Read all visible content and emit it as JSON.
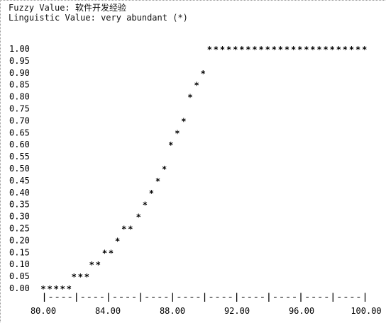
{
  "header": {
    "fuzzy_label": "Fuzzy Value:",
    "fuzzy_value": "软件开发经验",
    "linguistic_label": "Linguistic Value:",
    "linguistic_value": "very abundant",
    "linguistic_symbol": "(*)"
  },
  "chart_data": {
    "type": "scatter",
    "title": "",
    "xlabel": "",
    "ylabel": "",
    "xlim": [
      80,
      100
    ],
    "ylim": [
      0,
      1
    ],
    "grid": false,
    "legend": "none",
    "marker": "*",
    "y_tick_labels": [
      "1.00",
      "0.95",
      "0.90",
      "0.85",
      "0.80",
      "0.75",
      "0.70",
      "0.65",
      "0.60",
      "0.55",
      "0.50",
      "0.45",
      "0.40",
      "0.35",
      "0.30",
      "0.25",
      "0.20",
      "0.15",
      "0.10",
      "0.05",
      "0.00"
    ],
    "x_tick_labels": [
      "80.00",
      "84.00",
      "88.00",
      "92.00",
      "96.00",
      "100.00"
    ],
    "x_tick_values": [
      80,
      84,
      88,
      92,
      96,
      100
    ],
    "axis_line": "|----|----|----|----|----|----|----|----|----|----|",
    "series": [
      {
        "points": [
          {
            "x": 80.0,
            "y": 0.0
          },
          {
            "x": 80.4,
            "y": 0.0
          },
          {
            "x": 80.8,
            "y": 0.0
          },
          {
            "x": 81.2,
            "y": 0.0
          },
          {
            "x": 81.6,
            "y": 0.0
          },
          {
            "x": 81.9,
            "y": 0.05
          },
          {
            "x": 82.3,
            "y": 0.05
          },
          {
            "x": 82.7,
            "y": 0.05
          },
          {
            "x": 83.0,
            "y": 0.1
          },
          {
            "x": 83.4,
            "y": 0.1
          },
          {
            "x": 83.8,
            "y": 0.15
          },
          {
            "x": 84.2,
            "y": 0.15
          },
          {
            "x": 84.6,
            "y": 0.2
          },
          {
            "x": 85.0,
            "y": 0.25
          },
          {
            "x": 85.4,
            "y": 0.25
          },
          {
            "x": 85.9,
            "y": 0.3
          },
          {
            "x": 86.3,
            "y": 0.35
          },
          {
            "x": 86.7,
            "y": 0.4
          },
          {
            "x": 87.1,
            "y": 0.45
          },
          {
            "x": 87.5,
            "y": 0.5
          },
          {
            "x": 87.9,
            "y": 0.6
          },
          {
            "x": 88.3,
            "y": 0.65
          },
          {
            "x": 88.7,
            "y": 0.7
          },
          {
            "x": 89.1,
            "y": 0.8
          },
          {
            "x": 89.5,
            "y": 0.85
          },
          {
            "x": 89.9,
            "y": 0.9
          },
          {
            "x": 90.3,
            "y": 1.0
          },
          {
            "x": 90.7,
            "y": 1.0
          },
          {
            "x": 91.1,
            "y": 1.0
          },
          {
            "x": 91.5,
            "y": 1.0
          },
          {
            "x": 91.9,
            "y": 1.0
          },
          {
            "x": 92.3,
            "y": 1.0
          },
          {
            "x": 92.7,
            "y": 1.0
          },
          {
            "x": 93.1,
            "y": 1.0
          },
          {
            "x": 93.5,
            "y": 1.0
          },
          {
            "x": 93.9,
            "y": 1.0
          },
          {
            "x": 94.3,
            "y": 1.0
          },
          {
            "x": 94.7,
            "y": 1.0
          },
          {
            "x": 95.1,
            "y": 1.0
          },
          {
            "x": 95.5,
            "y": 1.0
          },
          {
            "x": 95.9,
            "y": 1.0
          },
          {
            "x": 96.3,
            "y": 1.0
          },
          {
            "x": 96.7,
            "y": 1.0
          },
          {
            "x": 97.1,
            "y": 1.0
          },
          {
            "x": 97.5,
            "y": 1.0
          },
          {
            "x": 97.9,
            "y": 1.0
          },
          {
            "x": 98.3,
            "y": 1.0
          },
          {
            "x": 98.7,
            "y": 1.0
          },
          {
            "x": 99.1,
            "y": 1.0
          },
          {
            "x": 99.5,
            "y": 1.0
          },
          {
            "x": 99.9,
            "y": 1.0
          }
        ]
      }
    ]
  }
}
